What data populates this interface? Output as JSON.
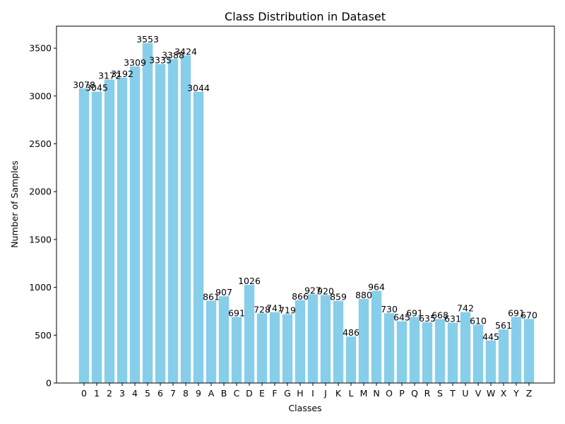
{
  "chart_data": {
    "type": "bar",
    "title": "Class Distribution in Dataset",
    "xlabel": "Classes",
    "ylabel": "Number of Samples",
    "categories": [
      "0",
      "1",
      "2",
      "3",
      "4",
      "5",
      "6",
      "7",
      "8",
      "9",
      "A",
      "B",
      "C",
      "D",
      "E",
      "F",
      "G",
      "H",
      "I",
      "J",
      "K",
      "L",
      "M",
      "N",
      "O",
      "P",
      "Q",
      "R",
      "S",
      "T",
      "U",
      "V",
      "W",
      "X",
      "Y",
      "Z"
    ],
    "values": [
      3078,
      3045,
      3172,
      3192,
      3309,
      3553,
      3335,
      3388,
      3424,
      3044,
      861,
      907,
      691,
      1026,
      728,
      741,
      719,
      866,
      927,
      920,
      859,
      486,
      880,
      964,
      730,
      645,
      691,
      635,
      668,
      631,
      742,
      610,
      445,
      561,
      691,
      670
    ],
    "ylim": [
      0,
      3730
    ],
    "yticks": [
      0,
      500,
      1000,
      1500,
      2000,
      2500,
      3000,
      3500
    ],
    "bar_color": "#87ceeb",
    "grid": false,
    "legend": "none"
  }
}
